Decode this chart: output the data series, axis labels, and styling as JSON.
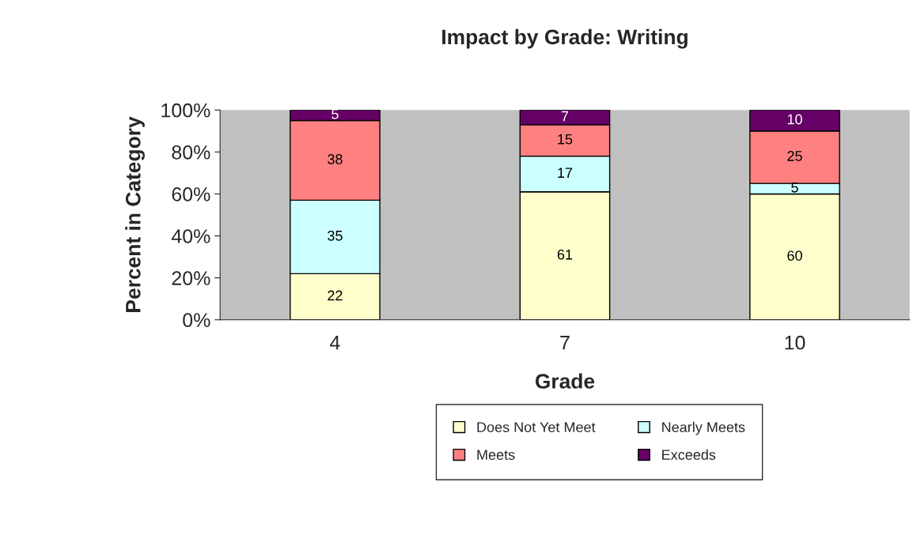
{
  "chart_data": {
    "type": "bar",
    "title": "Impact by Grade: Writing",
    "xlabel": "Grade",
    "ylabel": "Percent in Category",
    "categories": [
      "4",
      "7",
      "10"
    ],
    "stacked": true,
    "data_labels": true,
    "grid": false,
    "legend": "bottom",
    "series": [
      {
        "name": "Does Not Yet Meet",
        "color": "#ffffcc",
        "values": [
          22,
          61,
          60
        ]
      },
      {
        "name": "Nearly Meets",
        "color": "#ccffff",
        "values": [
          35,
          17,
          5
        ]
      },
      {
        "name": "Meets",
        "color": "#ff8080",
        "values": [
          38,
          15,
          25
        ]
      },
      {
        "name": "Exceeds",
        "color": "#660066",
        "values": [
          5,
          7,
          10
        ]
      }
    ],
    "ylim": [
      0,
      100
    ],
    "yticks": [
      {
        "value": 0,
        "label": "0%"
      },
      {
        "value": 20,
        "label": "20%"
      },
      {
        "value": 40,
        "label": "40%"
      },
      {
        "value": 60,
        "label": "60%"
      },
      {
        "value": 80,
        "label": "80%"
      },
      {
        "value": 100,
        "label": "100%"
      }
    ]
  }
}
